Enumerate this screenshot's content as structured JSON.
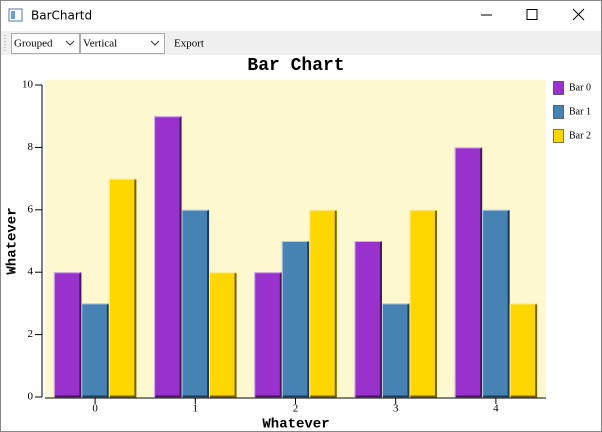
{
  "window": {
    "title": "BarChartd"
  },
  "toolbar": {
    "mode": "Grouped",
    "orientation": "Vertical",
    "export": "Export"
  },
  "chart_data": {
    "type": "bar",
    "title": "Bar Chart",
    "x_label": "Whatever",
    "y_label": "Whatever",
    "categories": [
      "0",
      "1",
      "2",
      "3",
      "4"
    ],
    "series": [
      {
        "name": "Bar 0",
        "color": "#9932cc",
        "values": [
          4,
          9,
          4,
          5,
          8
        ]
      },
      {
        "name": "Bar 1",
        "color": "#4682b4",
        "values": [
          3,
          6,
          5,
          3,
          6
        ]
      },
      {
        "name": "Bar 2",
        "color": "#ffd700",
        "values": [
          7,
          4,
          6,
          6,
          3
        ]
      }
    ],
    "ylim": [
      0,
      10
    ],
    "yticks": [
      0,
      2,
      4,
      6,
      8,
      10
    ],
    "legend": "right",
    "background": "#fdf8cf"
  }
}
